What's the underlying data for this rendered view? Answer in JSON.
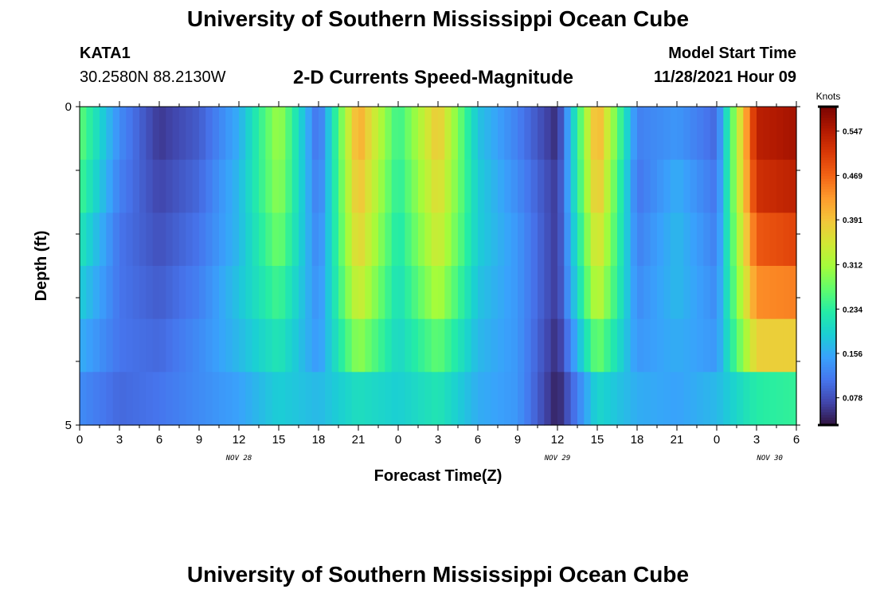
{
  "header": {
    "title": "University of Southern Mississippi Ocean Cube",
    "station": "KATA1",
    "coords": "30.2580N  88.2130W",
    "chart_title": "2-D Currents Speed-Magnitude",
    "model_label": "Model Start Time",
    "model_time": "11/28/2021 Hour 09"
  },
  "footer": {
    "title": "University of Southern Mississippi Ocean Cube"
  },
  "colors": {
    "scale": [
      "#30123b",
      "#4145ab",
      "#4675ed",
      "#39a2fc",
      "#1bcfd4",
      "#24eca6",
      "#61fc6c",
      "#a4fc3b",
      "#d1e834",
      "#f3c63a",
      "#fe9b2d",
      "#f36315",
      "#d93806",
      "#b11901",
      "#7a0402"
    ]
  },
  "chart_data": {
    "type": "heatmap",
    "title": "2-D Currents Speed-Magnitude",
    "xlabel": "Forecast Time(Z)",
    "ylabel": "Depth (ft)",
    "x_tick_labels": [
      "0",
      "3",
      "6",
      "9",
      "12",
      "15",
      "18",
      "21",
      "0",
      "3",
      "6",
      "9",
      "12",
      "15",
      "18",
      "21",
      "0",
      "3",
      "6"
    ],
    "day_labels": [
      {
        "label": "NOV 28",
        "hour": 12
      },
      {
        "label": "NOV 29",
        "hour": 36
      },
      {
        "label": "NOV 30",
        "hour": 52
      }
    ],
    "y_tick_labels": [
      {
        "value": 0,
        "label": "0"
      },
      {
        "value": 5,
        "label": "5"
      }
    ],
    "xlim": [
      0,
      54
    ],
    "ylim": [
      0,
      5
    ],
    "depth_levels": [
      0,
      1,
      2,
      3,
      4,
      5
    ],
    "hours": [
      0,
      3,
      6,
      9,
      12,
      15,
      18,
      21,
      24,
      27,
      30,
      33,
      36,
      39,
      42,
      45,
      48,
      51,
      54
    ],
    "speed_knots": [
      [
        0.27,
        0.13,
        0.06,
        0.09,
        0.16,
        0.31,
        0.1,
        0.42,
        0.24,
        0.39,
        0.18,
        0.12,
        0.05,
        0.42,
        0.12,
        0.14,
        0.1,
        0.54,
        0.56
      ],
      [
        0.25,
        0.12,
        0.07,
        0.1,
        0.17,
        0.3,
        0.11,
        0.4,
        0.23,
        0.37,
        0.19,
        0.13,
        0.06,
        0.4,
        0.11,
        0.16,
        0.11,
        0.52,
        0.54
      ],
      [
        0.22,
        0.11,
        0.08,
        0.11,
        0.17,
        0.28,
        0.12,
        0.38,
        0.22,
        0.35,
        0.19,
        0.14,
        0.06,
        0.37,
        0.12,
        0.17,
        0.12,
        0.48,
        0.5
      ],
      [
        0.19,
        0.11,
        0.09,
        0.12,
        0.18,
        0.25,
        0.13,
        0.35,
        0.21,
        0.32,
        0.18,
        0.14,
        0.06,
        0.34,
        0.13,
        0.17,
        0.13,
        0.44,
        0.45
      ],
      [
        0.16,
        0.11,
        0.1,
        0.13,
        0.17,
        0.22,
        0.14,
        0.3,
        0.2,
        0.27,
        0.17,
        0.14,
        0.05,
        0.28,
        0.14,
        0.16,
        0.14,
        0.38,
        0.38
      ],
      [
        0.13,
        0.1,
        0.11,
        0.13,
        0.15,
        0.19,
        0.17,
        0.21,
        0.19,
        0.22,
        0.16,
        0.14,
        0.04,
        0.2,
        0.16,
        0.15,
        0.17,
        0.23,
        0.24
      ]
    ],
    "colorbar": {
      "unit": "Knots",
      "min": 0.03,
      "max": 0.59,
      "tick_values": [
        0.078,
        0.156,
        0.234,
        0.312,
        0.391,
        0.469,
        0.547
      ],
      "tick_labels": [
        "0.078",
        "0.156",
        "0.234",
        "0.312",
        "0.391",
        "0.469",
        "0.547"
      ]
    }
  }
}
